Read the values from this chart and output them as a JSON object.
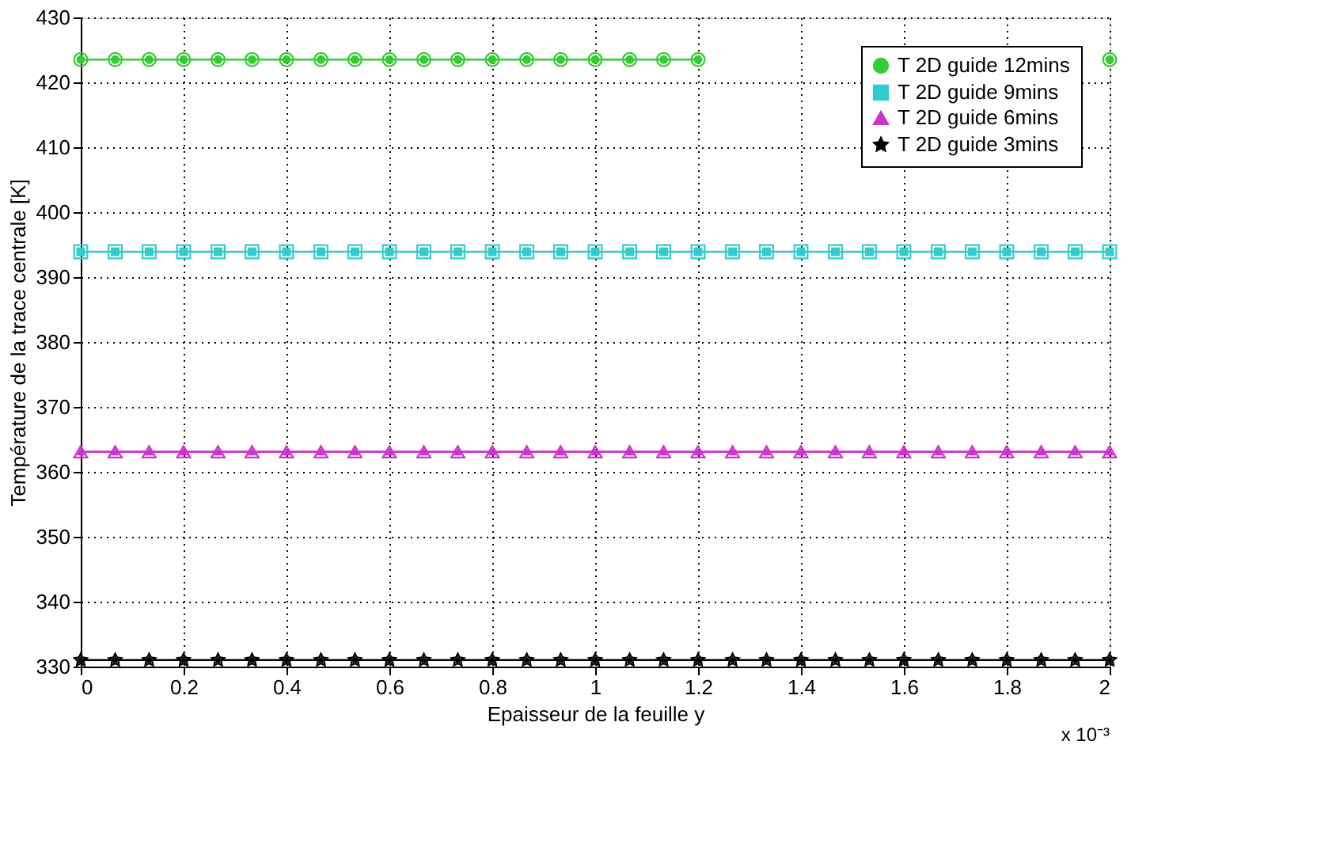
{
  "chart_data": {
    "type": "line",
    "xlabel": "Epaisseur de la feuille y",
    "ylabel": "Température de la trace centrale [K]",
    "annotations": [
      "x 10⁻³"
    ],
    "x": [
      0,
      0.067,
      0.133,
      0.2,
      0.267,
      0.333,
      0.4,
      0.467,
      0.533,
      0.6,
      0.667,
      0.733,
      0.8,
      0.867,
      0.933,
      1,
      1.067,
      1.133,
      1.2,
      1.267,
      1.333,
      1.4,
      1.467,
      1.533,
      1.6,
      1.667,
      1.733,
      1.8,
      1.867,
      1.933,
      2
    ],
    "series": [
      {
        "name": "T 2D guide 12mins",
        "color": "#33cc33",
        "marker": "circle",
        "values": [
          423.5,
          423.5,
          423.5,
          423.5,
          423.5,
          423.5,
          423.5,
          423.5,
          423.5,
          423.5,
          423.5,
          423.5,
          423.5,
          423.5,
          423.5,
          423.5,
          423.5,
          423.5,
          423.5,
          null,
          null,
          null,
          null,
          null,
          null,
          null,
          null,
          null,
          null,
          null,
          423.5
        ]
      },
      {
        "name": "T 2D guide 9mins",
        "color": "#33cccc",
        "marker": "square",
        "values": [
          393.9,
          393.9,
          393.9,
          393.9,
          393.9,
          393.9,
          393.9,
          393.9,
          393.9,
          393.9,
          393.9,
          393.9,
          393.9,
          393.9,
          393.9,
          393.9,
          393.9,
          393.9,
          393.9,
          393.9,
          393.9,
          393.9,
          393.9,
          393.9,
          393.9,
          393.9,
          393.9,
          393.9,
          393.9,
          393.9,
          393.9
        ]
      },
      {
        "name": "T 2D guide 6mins",
        "color": "#cc33cc",
        "marker": "triangle",
        "values": [
          363.1,
          363.1,
          363.1,
          363.1,
          363.1,
          363.1,
          363.1,
          363.1,
          363.1,
          363.1,
          363.1,
          363.1,
          363.1,
          363.1,
          363.1,
          363.1,
          363.1,
          363.1,
          363.1,
          363.1,
          363.1,
          363.1,
          363.1,
          363.1,
          363.1,
          363.1,
          363.1,
          363.1,
          363.1,
          363.1,
          363.1
        ]
      },
      {
        "name": "T 2D guide 3mins",
        "color": "#000000",
        "marker": "star",
        "values": [
          331,
          331,
          331,
          331,
          331,
          331,
          331,
          331,
          331,
          331,
          331,
          331,
          331,
          331,
          331,
          331,
          331,
          331,
          331,
          331,
          331,
          331,
          331,
          331,
          331,
          331,
          331,
          331,
          331,
          331,
          331
        ]
      }
    ],
    "xlim": [
      0,
      2
    ],
    "xticks": [
      0,
      0.2,
      0.4,
      0.6,
      0.8,
      1,
      1.2,
      1.4,
      1.6,
      1.8,
      2
    ],
    "ylim": [
      330,
      430
    ],
    "yticks": [
      330,
      340,
      350,
      360,
      370,
      380,
      390,
      400,
      410,
      420,
      430
    ],
    "grid": true,
    "legend": "top right",
    "line_style": "solid"
  }
}
